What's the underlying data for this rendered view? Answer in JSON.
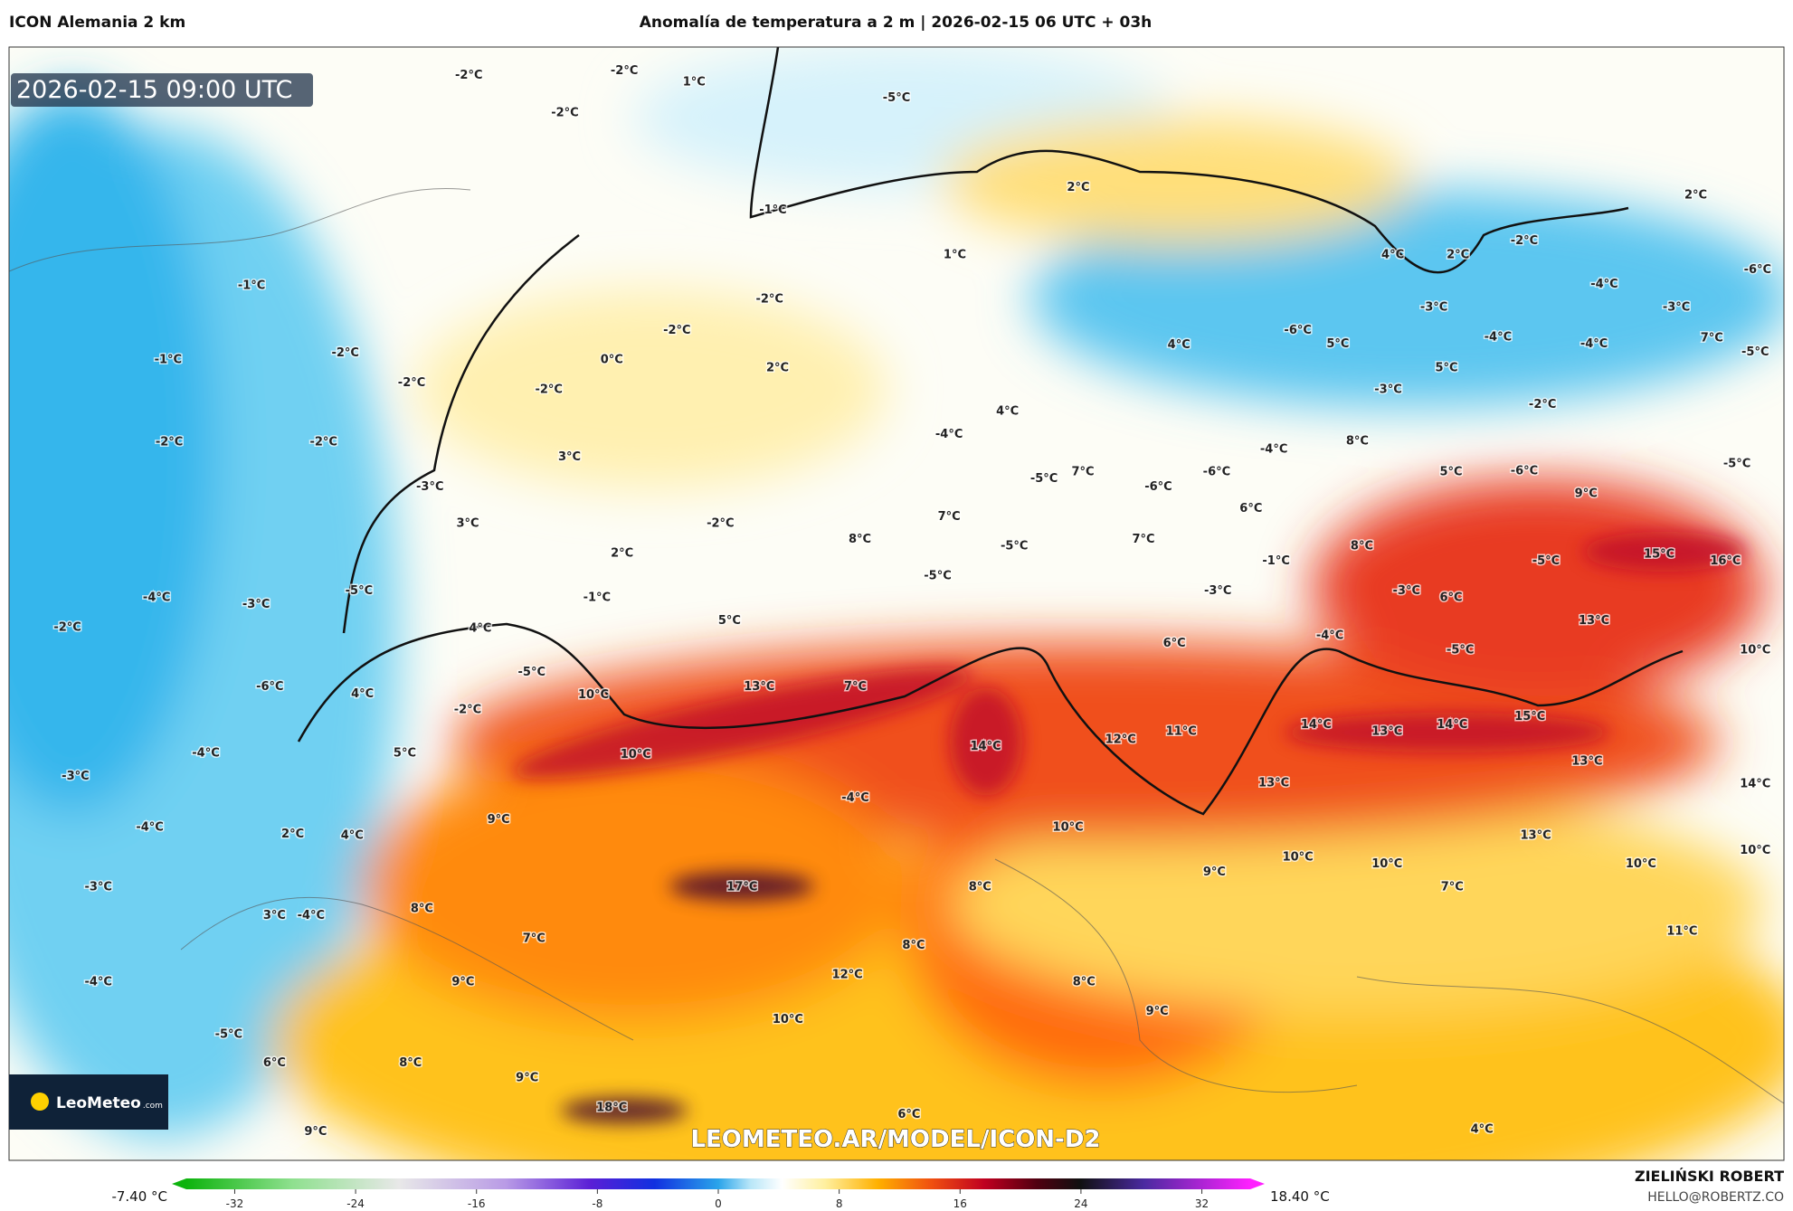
{
  "header": {
    "model": "ICON Alemania 2 km",
    "title": "Anomalía de temperatura a 2 m | 2026-02-15 06 UTC + 03h"
  },
  "map": {
    "timestamp": "2026-02-15 09:00 UTC",
    "watermark": "LEOMETEO.AR/MODEL/ICON-D2",
    "logo": {
      "brand": "LeoMeteo",
      "suffix": ".com"
    },
    "labels": [
      "-2°C",
      "-2°C",
      "1°C",
      "-2°C",
      "-5°C",
      "2°C",
      "-1°C",
      "2°C",
      "-1°C",
      "1°C",
      "-2°C",
      "4°C",
      "2°C",
      "-2°C",
      "-6°C",
      "-4°C",
      "-3°C",
      "-3°C",
      "-2°C",
      "-2°C",
      "-1°C",
      "0°C",
      "2°C",
      "-2°C",
      "-2°C",
      "4°C",
      "-6°C",
      "5°C",
      "-4°C",
      "-4°C",
      "7°C",
      "-5°C",
      "5°C",
      "-3°C",
      "-2°C",
      "-2°C",
      "-2°C",
      "3°C",
      "4°C",
      "-4°C",
      "8°C",
      "-4°C",
      "-6°C",
      "7°C",
      "-5°C",
      "5°C",
      "-6°C",
      "-5°C",
      "9°C",
      "-3°C",
      "3°C",
      "-6°C",
      "6°C",
      "7°C",
      "-2°C",
      "8°C",
      "7°C",
      "-5°C",
      "8°C",
      "2°C",
      "-1°C",
      "15°C",
      "16°C",
      "-5°C",
      "-4°C",
      "-3°C",
      "-1°C",
      "-5°C",
      "-3°C",
      "-3°C",
      "-5°C",
      "6°C",
      "5°C",
      "13°C",
      "-2°C",
      "4°C",
      "-4°C",
      "6°C",
      "-5°C",
      "10°C",
      "-6°C",
      "4°C",
      "-5°C",
      "10°C",
      "13°C",
      "7°C",
      "14°C",
      "13°C",
      "14°C",
      "15°C",
      "11°C",
      "-2°C",
      "12°C",
      "14°C",
      "-4°C",
      "5°C",
      "10°C",
      "13°C",
      "14°C",
      "-3°C",
      "13°C",
      "-4°C",
      "-4°C",
      "9°C",
      "2°C",
      "4°C",
      "10°C",
      "13°C",
      "10°C",
      "10°C",
      "10°C",
      "9°C",
      "10°C",
      "-3°C",
      "17°C",
      "8°C",
      "7°C",
      "8°C",
      "3°C",
      "-4°C",
      "11°C",
      "7°C",
      "8°C",
      "12°C",
      "-4°C",
      "9°C",
      "8°C",
      "9°C",
      "10°C",
      "-5°C",
      "6°C",
      "8°C",
      "9°C",
      "18°C",
      "6°C",
      "9°C",
      "4°C"
    ]
  },
  "colorbar": {
    "min_label": "-7.40 °C",
    "max_label": "18.40 °C",
    "lim": [
      -35.2,
      35.2
    ],
    "ticks": [
      -32,
      -24,
      -16,
      -8,
      0,
      8,
      16,
      24,
      32
    ]
  },
  "credit": {
    "author": "ZIELIŃSKI ROBERT",
    "email": "HELLO@ROBERTZ.CO"
  }
}
